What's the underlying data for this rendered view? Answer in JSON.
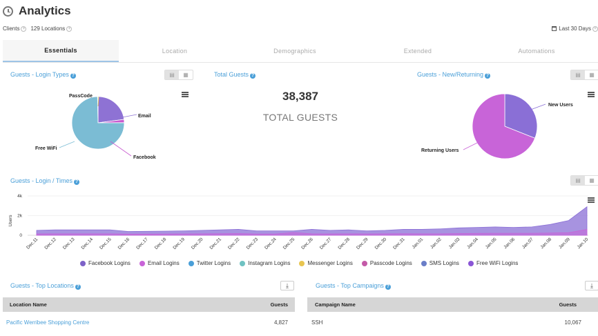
{
  "header": {
    "title": "Analytics",
    "clients_label": "Clients",
    "locations_label": "129 Locations",
    "date_range": "Last 30 Days"
  },
  "tabs": [
    {
      "label": "Essentials",
      "active": true
    },
    {
      "label": "Location"
    },
    {
      "label": "Demographics"
    },
    {
      "label": "Extended"
    },
    {
      "label": "Automations"
    }
  ],
  "login_types": {
    "title": "Guests - Login Types",
    "chart_data": {
      "type": "pie",
      "labels": [
        "Email",
        "Facebook",
        "Free WiFi",
        "PassCode"
      ],
      "values": [
        23,
        2,
        75,
        0.3
      ],
      "colors": [
        "#8e72d4",
        "#c75ad0",
        "#7bbcd4",
        "#f0d050"
      ]
    },
    "labels": {
      "passcode": "PassCode",
      "email": "Email",
      "facebook": "Facebook",
      "free_wifi": "Free WiFi"
    }
  },
  "total_guests": {
    "title": "Total Guests",
    "value": "38,387",
    "caption": "TOTAL GUESTS"
  },
  "new_returning": {
    "title": "Guests - New/Returning",
    "chart_data": {
      "type": "pie",
      "labels": [
        "New Users",
        "Returning Users"
      ],
      "values": [
        31,
        69
      ],
      "colors": [
        "#8a6fd6",
        "#c864d8"
      ]
    },
    "labels": {
      "new": "New Users",
      "returning": "Returning Users"
    }
  },
  "login_times": {
    "title": "Guests - Login / Times",
    "chart_data": {
      "type": "area",
      "ylabel": "Users",
      "yticks": [
        "0",
        "2k",
        "4k"
      ],
      "ylim": [
        0,
        4000
      ],
      "categories": [
        "Dec.11",
        "Dec.12",
        "Dec.13",
        "Dec.14",
        "Dec.15",
        "Dec.16",
        "Dec.17",
        "Dec.18",
        "Dec.19",
        "Dec.20",
        "Dec.21",
        "Dec.22",
        "Dec.23",
        "Dec.24",
        "Dec.25",
        "Dec.26",
        "Dec.27",
        "Dec.28",
        "Dec.29",
        "Dec.30",
        "Dec.31",
        "Jan.01",
        "Jan.02",
        "Jan.03",
        "Jan.04",
        "Jan.05",
        "Jan.06",
        "Jan.07",
        "Jan.08",
        "Jan.09",
        "Jan.10"
      ],
      "series": [
        {
          "name": "Free WiFi Logins",
          "color": "#8a6fd6",
          "values": [
            500,
            550,
            550,
            550,
            550,
            380,
            400,
            420,
            450,
            500,
            550,
            600,
            450,
            450,
            450,
            600,
            500,
            550,
            450,
            500,
            600,
            600,
            650,
            750,
            800,
            850,
            800,
            850,
            1100,
            1500,
            2900
          ]
        },
        {
          "name": "Email Logins",
          "color": "#c864d8",
          "values": [
            140,
            150,
            150,
            150,
            150,
            120,
            120,
            130,
            140,
            150,
            160,
            170,
            130,
            130,
            280,
            150,
            140,
            150,
            140,
            150,
            160,
            150,
            150,
            170,
            190,
            200,
            200,
            200,
            230,
            260,
            600
          ]
        }
      ]
    },
    "legend": [
      {
        "label": "Facebook Logins",
        "color": "#7d62c8"
      },
      {
        "label": "Email Logins",
        "color": "#c864d8"
      },
      {
        "label": "Twitter Logins",
        "color": "#4a9fd8"
      },
      {
        "label": "Instagram Logins",
        "color": "#6fc2c2"
      },
      {
        "label": "Messenger Logins",
        "color": "#e8c550"
      },
      {
        "label": "Passcode Logins",
        "color": "#c45aa8"
      },
      {
        "label": "SMS Logins",
        "color": "#6a7ec8"
      },
      {
        "label": "Free WiFi Logins",
        "color": "#8a56d6"
      }
    ]
  },
  "top_locations": {
    "title": "Guests - Top Locations",
    "col_name": "Location Name",
    "col_guests": "Guests",
    "rows": [
      {
        "name": "Pacific Werribee Shopping Centre",
        "guests": "4,827"
      }
    ]
  },
  "top_campaigns": {
    "title": "Guests - Top Campaigns",
    "col_name": "Campaign Name",
    "col_guests": "Guests",
    "rows": [
      {
        "name": "SSH",
        "guests": "10,067"
      }
    ]
  }
}
